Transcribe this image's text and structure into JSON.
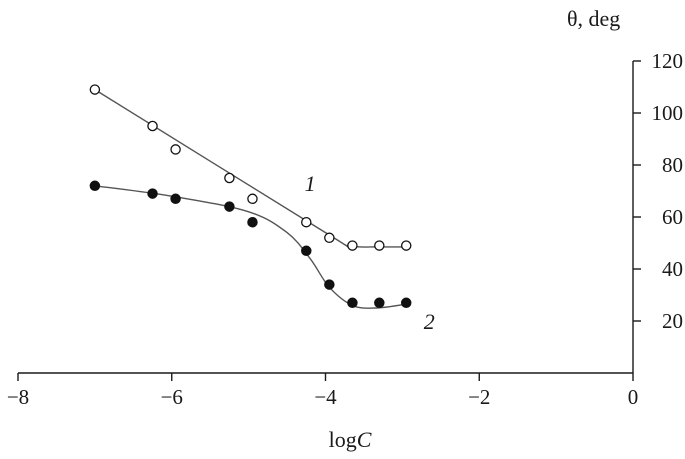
{
  "chart_data": {
    "type": "scatter",
    "xlabel_base": "log",
    "xlabel_var": "C",
    "ylabel": "θ, deg",
    "xlim": [
      -8,
      0
    ],
    "ylim": [
      0,
      120
    ],
    "x_ticks": [
      -8,
      -6,
      -4,
      -2,
      0
    ],
    "x_tick_labels": [
      "−8",
      "−6",
      "−4",
      "−2",
      "0"
    ],
    "y_ticks": [
      20,
      40,
      60,
      80,
      100,
      120
    ],
    "y_tick_labels": [
      "20",
      "40",
      "60",
      "80",
      "100",
      "120"
    ],
    "grid": false,
    "series": [
      {
        "name": "1",
        "marker": "open-circle",
        "x": [
          -7.0,
          -6.25,
          -5.95,
          -5.25,
          -4.95,
          -4.25,
          -3.95,
          -3.65,
          -3.3,
          -2.95
        ],
        "y": [
          109,
          95,
          86,
          75,
          67,
          58,
          52,
          49,
          49,
          49
        ],
        "fit": [
          [
            -7.0,
            109
          ],
          [
            -4.0,
            54
          ],
          [
            -3.7,
            49
          ],
          [
            -3.3,
            48.5
          ],
          [
            -2.95,
            48.5
          ]
        ]
      },
      {
        "name": "2",
        "marker": "filled-circle",
        "x": [
          -7.0,
          -6.25,
          -5.95,
          -5.25,
          -4.95,
          -4.25,
          -3.95,
          -3.65,
          -3.3,
          -2.95
        ],
        "y": [
          72,
          69,
          67,
          64,
          58,
          47,
          34,
          27,
          27,
          27
        ],
        "fit": [
          [
            -7.0,
            72
          ],
          [
            -6.0,
            68
          ],
          [
            -5.0,
            62
          ],
          [
            -4.5,
            54
          ],
          [
            -4.2,
            44
          ],
          [
            -3.95,
            33
          ],
          [
            -3.65,
            26
          ],
          [
            -3.35,
            25
          ],
          [
            -2.95,
            26.5
          ]
        ]
      }
    ],
    "annotations": [
      {
        "text": "1",
        "x": -4.2,
        "y": 73
      },
      {
        "text": "2",
        "x": -2.65,
        "y": 20
      }
    ]
  }
}
